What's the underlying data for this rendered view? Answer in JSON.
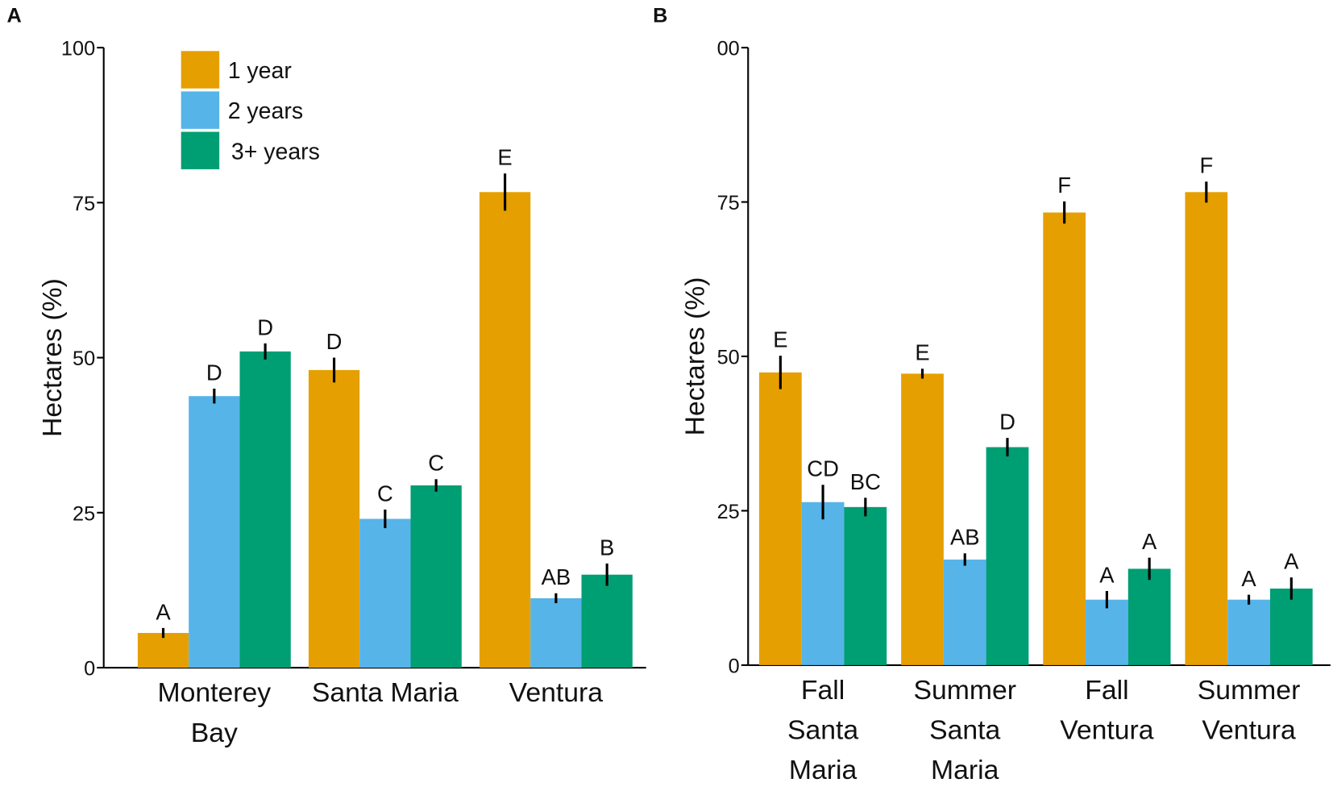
{
  "chart_data": [
    {
      "type": "bar",
      "panel_label": "A",
      "y_label": "Hectares (%)",
      "categories": [
        [
          "Monterey",
          "Bay"
        ],
        [
          "Santa Maria"
        ],
        [
          "Ventura"
        ]
      ],
      "ylim": [
        0,
        100
      ],
      "yticks": [
        0,
        25,
        50,
        75,
        100
      ],
      "legend": true,
      "series": [
        {
          "name": "1 year",
          "color": "#e69f00",
          "values": [
            5.6,
            48.0,
            76.7
          ],
          "errors": [
            0.8,
            2.0,
            3.0
          ],
          "letters": [
            "A",
            "D",
            "E"
          ]
        },
        {
          "name": "2 years",
          "color": "#56b4e9",
          "values": [
            43.8,
            24.0,
            11.2
          ],
          "errors": [
            1.2,
            1.5,
            0.8
          ],
          "letters": [
            "D",
            "C",
            "AB"
          ]
        },
        {
          "name": "3+ years",
          "color": "#009e73",
          "values": [
            51.0,
            29.4,
            15.0
          ],
          "errors": [
            1.3,
            1.0,
            1.8
          ],
          "letters": [
            "D",
            "C",
            "B"
          ]
        }
      ]
    },
    {
      "type": "bar",
      "panel_label": "B",
      "y_label": "Hectares (%)",
      "categories": [
        [
          "Fall",
          "Santa",
          "Maria"
        ],
        [
          "Summer",
          "Santa",
          "Maria"
        ],
        [
          "Fall",
          "Ventura"
        ],
        [
          "Summer",
          "Ventura"
        ]
      ],
      "ylim": [
        0,
        100
      ],
      "yticks": [
        0,
        25,
        50,
        75,
        {
          "value": 100,
          "label": "00"
        }
      ],
      "legend": false,
      "series": [
        {
          "color": "#e69f00",
          "values": [
            47.4,
            47.2,
            73.3,
            76.6
          ],
          "errors": [
            2.7,
            0.8,
            1.8,
            1.7
          ],
          "letters": [
            "E",
            "E",
            "F",
            "F"
          ]
        },
        {
          "color": "#56b4e9",
          "values": [
            26.4,
            17.1,
            10.6,
            10.6
          ],
          "errors": [
            2.8,
            1.0,
            1.4,
            0.8
          ],
          "letters": [
            "CD",
            "AB",
            "A",
            "A"
          ]
        },
        {
          "color": "#009e73",
          "values": [
            25.6,
            35.3,
            15.6,
            12.4
          ],
          "errors": [
            1.5,
            1.5,
            1.8,
            1.8
          ],
          "letters": [
            "BC",
            "D",
            "A",
            "A"
          ]
        }
      ]
    }
  ]
}
